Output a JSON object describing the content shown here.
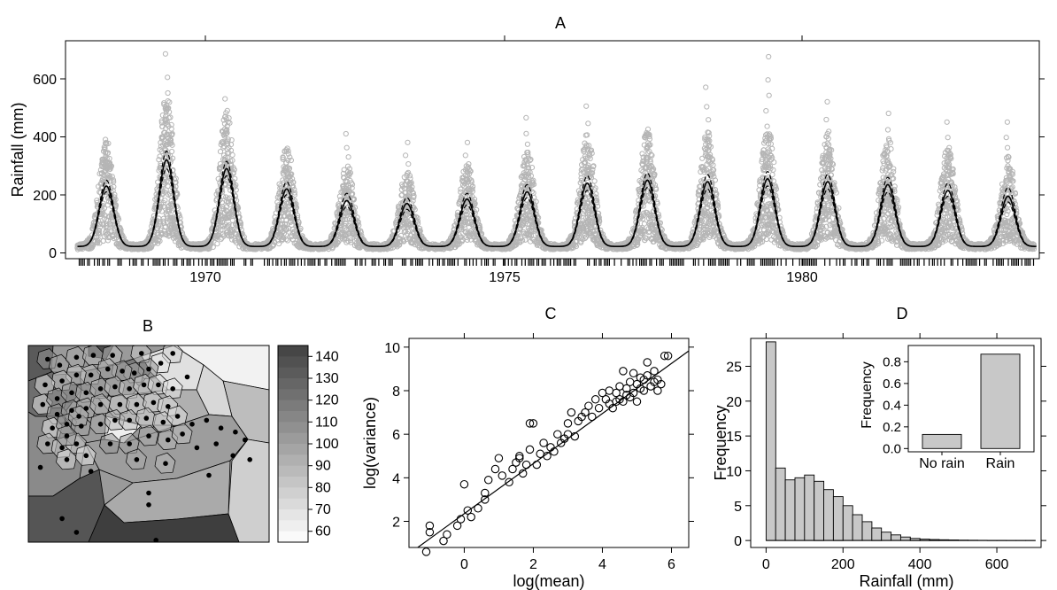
{
  "panels": {
    "A": {
      "label": "A",
      "ylabel": "Rainfall (mm)",
      "xticks": [
        "1970",
        "1975",
        "1980"
      ],
      "yticks": [
        "0",
        "200",
        "400",
        "600"
      ]
    },
    "B": {
      "label": "B",
      "colorbar_ticks": [
        "140",
        "130",
        "120",
        "110",
        "100",
        "90",
        "80",
        "70",
        "60"
      ]
    },
    "C": {
      "label": "C",
      "xlabel": "log(mean)",
      "ylabel": "log(variance)",
      "xticks": [
        "0",
        "2",
        "4",
        "6"
      ],
      "yticks": [
        "2",
        "4",
        "6",
        "8",
        "10"
      ]
    },
    "D": {
      "label": "D",
      "xlabel": "Rainfall (mm)",
      "ylabel": "Frequency",
      "xticks": [
        "0",
        "200",
        "400",
        "600"
      ],
      "yticks": [
        "0",
        "5",
        "10",
        "15",
        "20",
        "25"
      ],
      "inset": {
        "ylabel": "Frequency",
        "yticks": [
          "0.0",
          "0.2",
          "0.4",
          "0.6",
          "0.8"
        ]
      }
    }
  },
  "chart_data": [
    {
      "panel": "A",
      "type": "scatter",
      "ylabel": "Rainfall (mm)",
      "xlim": [
        1967.8,
        1984.0
      ],
      "ylim": [
        -30,
        720
      ],
      "seasonal_peaks": {
        "years": [
          1968,
          1969,
          1970,
          1971,
          1972,
          1973,
          1974,
          1975,
          1976,
          1977,
          1978,
          1979,
          1980,
          1981,
          1982,
          1983
        ],
        "peak_mean": [
          220,
          310,
          280,
          210,
          170,
          160,
          175,
          200,
          230,
          240,
          235,
          245,
          235,
          225,
          205,
          185
        ],
        "peak_upper": [
          240,
          340,
          305,
          235,
          195,
          180,
          195,
          225,
          255,
          265,
          260,
          270,
          260,
          250,
          230,
          215
        ],
        "peak_lower": [
          200,
          280,
          255,
          190,
          150,
          140,
          155,
          180,
          205,
          215,
          210,
          220,
          210,
          200,
          185,
          165
        ],
        "obs_max": [
          380,
          675,
          520,
          340,
          400,
          370,
          370,
          455,
          495,
          395,
          560,
          665,
          510,
          470,
          440,
          440
        ]
      },
      "base_mean": 12,
      "lines": [
        "mean",
        "upper bound (dashed)",
        "lower bound (dashed)"
      ]
    },
    {
      "panel": "B",
      "type": "heatmap",
      "colorbar": {
        "min": 55,
        "max": 145,
        "ticks": [
          140,
          130,
          120,
          110,
          100,
          90,
          80,
          70,
          60
        ]
      },
      "stations": [
        [
          0.08,
          0.07
        ],
        [
          0.13,
          0.1
        ],
        [
          0.2,
          0.06
        ],
        [
          0.27,
          0.05
        ],
        [
          0.35,
          0.05
        ],
        [
          0.47,
          0.04
        ],
        [
          0.6,
          0.04
        ],
        [
          0.66,
          0.16
        ],
        [
          0.55,
          0.09
        ],
        [
          0.5,
          0.12
        ],
        [
          0.44,
          0.14
        ],
        [
          0.39,
          0.13
        ],
        [
          0.33,
          0.12
        ],
        [
          0.26,
          0.15
        ],
        [
          0.2,
          0.15
        ],
        [
          0.14,
          0.18
        ],
        [
          0.07,
          0.2
        ],
        [
          0.06,
          0.3
        ],
        [
          0.12,
          0.27
        ],
        [
          0.18,
          0.24
        ],
        [
          0.24,
          0.24
        ],
        [
          0.3,
          0.22
        ],
        [
          0.36,
          0.21
        ],
        [
          0.42,
          0.22
        ],
        [
          0.48,
          0.2
        ],
        [
          0.54,
          0.2
        ],
        [
          0.6,
          0.22
        ],
        [
          0.12,
          0.35
        ],
        [
          0.18,
          0.33
        ],
        [
          0.24,
          0.32
        ],
        [
          0.3,
          0.3
        ],
        [
          0.38,
          0.3
        ],
        [
          0.45,
          0.3
        ],
        [
          0.52,
          0.29
        ],
        [
          0.58,
          0.31
        ],
        [
          0.1,
          0.42
        ],
        [
          0.16,
          0.4
        ],
        [
          0.22,
          0.41
        ],
        [
          0.3,
          0.4
        ],
        [
          0.36,
          0.38
        ],
        [
          0.42,
          0.38
        ],
        [
          0.49,
          0.37
        ],
        [
          0.56,
          0.39
        ],
        [
          0.62,
          0.36
        ],
        [
          0.68,
          0.4
        ],
        [
          0.74,
          0.38
        ],
        [
          0.8,
          0.42
        ],
        [
          0.86,
          0.44
        ],
        [
          0.9,
          0.48
        ],
        [
          0.08,
          0.5
        ],
        [
          0.14,
          0.52
        ],
        [
          0.2,
          0.5
        ],
        [
          0.16,
          0.58
        ],
        [
          0.24,
          0.56
        ],
        [
          0.34,
          0.5
        ],
        [
          0.42,
          0.5
        ],
        [
          0.5,
          0.46
        ],
        [
          0.58,
          0.48
        ],
        [
          0.64,
          0.45
        ],
        [
          0.7,
          0.52
        ],
        [
          0.78,
          0.5
        ],
        [
          0.85,
          0.56
        ],
        [
          0.92,
          0.58
        ],
        [
          0.05,
          0.62
        ],
        [
          0.26,
          0.64
        ],
        [
          0.45,
          0.58
        ],
        [
          0.57,
          0.6
        ],
        [
          0.75,
          0.66
        ],
        [
          0.5,
          0.75
        ],
        [
          0.5,
          0.81
        ],
        [
          0.14,
          0.88
        ],
        [
          0.2,
          0.95
        ],
        [
          0.53,
          0.99
        ],
        [
          0.16,
          0.46
        ],
        [
          0.21,
          0.36
        ]
      ]
    },
    {
      "panel": "C",
      "type": "scatter",
      "xlabel": "log(mean)",
      "ylabel": "log(variance)",
      "xlim": [
        -1.6,
        6.5
      ],
      "ylim": [
        0.8,
        10.4
      ],
      "fit_line": {
        "slope": 1.15,
        "intercept": 2.35
      },
      "points": [
        [
          -1.1,
          0.6
        ],
        [
          -1.0,
          1.5
        ],
        [
          -1.0,
          1.8
        ],
        [
          -0.6,
          1.1
        ],
        [
          -0.5,
          1.4
        ],
        [
          -0.2,
          1.8
        ],
        [
          -0.1,
          2.1
        ],
        [
          0.1,
          2.5
        ],
        [
          0.2,
          2.2
        ],
        [
          0.0,
          3.7
        ],
        [
          0.4,
          2.6
        ],
        [
          0.6,
          3.3
        ],
        [
          0.6,
          3.0
        ],
        [
          0.7,
          3.9
        ],
        [
          0.9,
          4.4
        ],
        [
          1.0,
          4.9
        ],
        [
          1.1,
          4.1
        ],
        [
          1.3,
          3.8
        ],
        [
          1.4,
          4.4
        ],
        [
          1.5,
          4.7
        ],
        [
          1.6,
          5.0
        ],
        [
          1.6,
          4.9
        ],
        [
          1.7,
          4.2
        ],
        [
          1.8,
          4.6
        ],
        [
          1.9,
          5.3
        ],
        [
          2.0,
          6.5
        ],
        [
          1.9,
          6.5
        ],
        [
          2.1,
          4.6
        ],
        [
          2.2,
          5.1
        ],
        [
          2.3,
          5.6
        ],
        [
          2.4,
          5.0
        ],
        [
          2.5,
          5.4
        ],
        [
          2.6,
          5.2
        ],
        [
          2.7,
          6.0
        ],
        [
          2.8,
          5.6
        ],
        [
          2.9,
          5.8
        ],
        [
          3.0,
          6.5
        ],
        [
          3.0,
          6.0
        ],
        [
          3.1,
          7.0
        ],
        [
          3.2,
          5.9
        ],
        [
          3.3,
          6.6
        ],
        [
          3.4,
          6.8
        ],
        [
          3.5,
          7.0
        ],
        [
          3.6,
          7.3
        ],
        [
          3.7,
          6.8
        ],
        [
          3.8,
          7.6
        ],
        [
          3.9,
          7.2
        ],
        [
          4.0,
          7.9
        ],
        [
          4.1,
          7.6
        ],
        [
          4.2,
          8.0
        ],
        [
          4.3,
          7.2
        ],
        [
          4.4,
          7.9
        ],
        [
          4.5,
          8.2
        ],
        [
          4.6,
          7.5
        ],
        [
          4.7,
          8.1
        ],
        [
          4.8,
          8.4
        ],
        [
          4.9,
          7.9
        ],
        [
          5.0,
          8.3
        ],
        [
          5.1,
          8.6
        ],
        [
          5.2,
          8.0
        ],
        [
          5.3,
          8.7
        ],
        [
          5.4,
          8.2
        ],
        [
          5.5,
          8.9
        ],
        [
          5.6,
          8.5
        ],
        [
          5.7,
          8.3
        ],
        [
          5.8,
          9.6
        ],
        [
          5.9,
          9.6
        ],
        [
          4.9,
          8.8
        ],
        [
          5.3,
          9.3
        ],
        [
          4.6,
          8.9
        ],
        [
          4.2,
          7.4
        ],
        [
          5.0,
          7.5
        ],
        [
          5.6,
          8.0
        ],
        [
          4.4,
          7.5
        ],
        [
          4.7,
          7.8
        ],
        [
          5.2,
          8.5
        ],
        [
          5.5,
          8.4
        ],
        [
          4.8,
          7.7
        ],
        [
          5.1,
          8.1
        ],
        [
          4.5,
          7.6
        ]
      ]
    },
    {
      "panel": "D",
      "type": "bar",
      "xlabel": "Rainfall (mm)",
      "ylabel": "Frequency",
      "bin_width": 25,
      "bin_start": 0,
      "xlim": [
        -40,
        715
      ],
      "ylim": [
        -1,
        29
      ],
      "values": [
        28.5,
        10.4,
        8.7,
        9.0,
        9.4,
        8.5,
        7.3,
        6.3,
        5.0,
        3.7,
        2.7,
        1.8,
        1.2,
        0.8,
        0.5,
        0.3,
        0.2,
        0.15,
        0.1,
        0.08,
        0.05,
        0.04,
        0.03,
        0.02,
        0.02,
        0.01,
        0.01,
        0.01
      ],
      "inset": {
        "type": "bar",
        "ylabel": "Frequency",
        "categories": [
          "No rain",
          "Rain"
        ],
        "values": [
          0.13,
          0.87
        ],
        "ylim": [
          -0.03,
          0.95
        ]
      }
    }
  ]
}
